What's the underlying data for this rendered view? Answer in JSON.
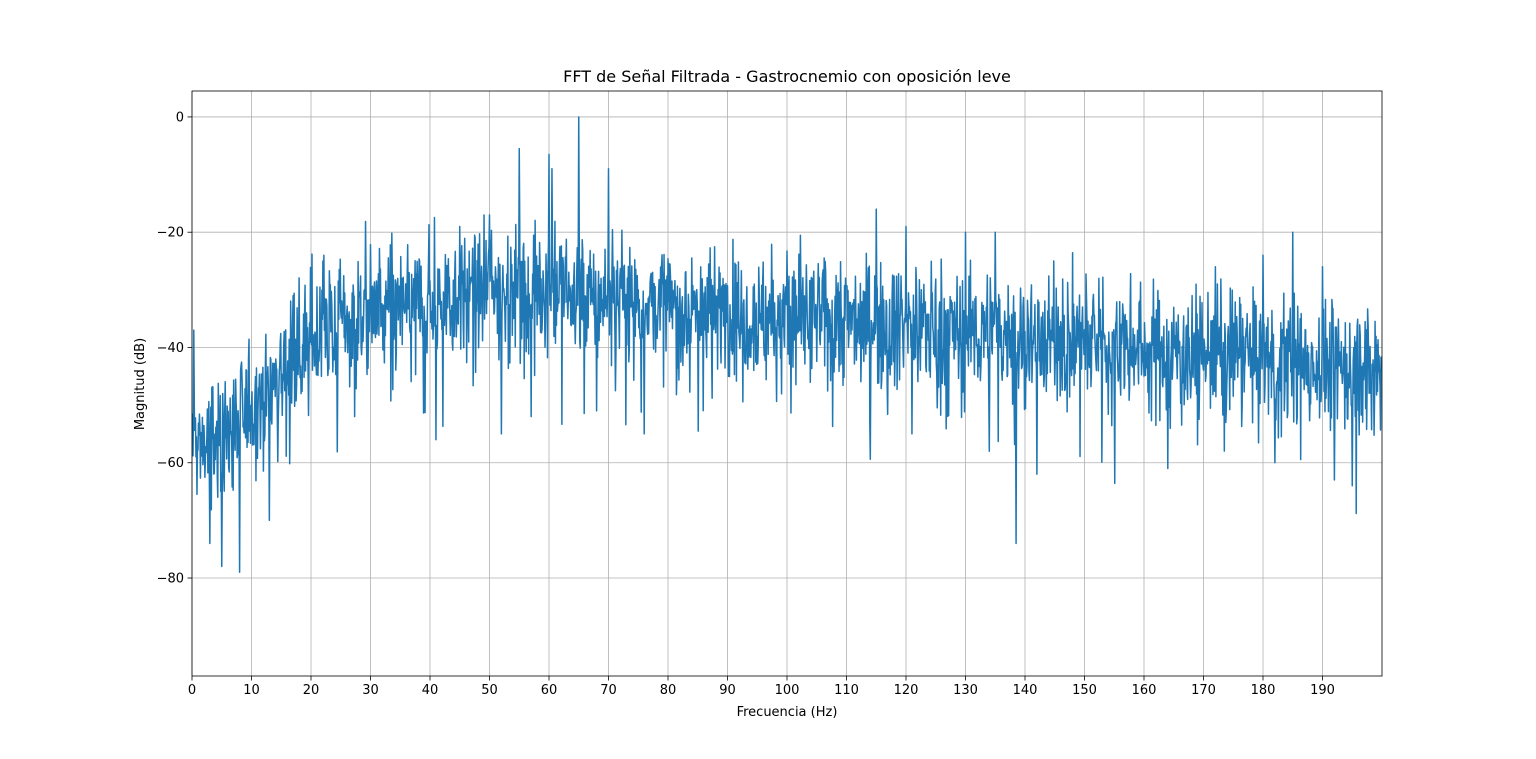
{
  "chart_data": {
    "type": "line",
    "title": "FFT de Señal Filtrada - Gastrocnemio con oposición leve",
    "xlabel": "Frecuencia (Hz)",
    "ylabel": "Magnitud (dB)",
    "xlim": [
      0,
      200
    ],
    "ylim": [
      -97,
      4.5
    ],
    "grid": true,
    "xticks": [
      0,
      10,
      20,
      30,
      40,
      50,
      60,
      70,
      80,
      90,
      100,
      110,
      120,
      130,
      140,
      150,
      160,
      170,
      180,
      190
    ],
    "xtick_labels": [
      "0",
      "10",
      "20",
      "30",
      "40",
      "50",
      "60",
      "70",
      "80",
      "90",
      "100",
      "110",
      "120",
      "130",
      "140",
      "150",
      "160",
      "170",
      "180",
      "190"
    ],
    "yticks": [
      0,
      -20,
      -40,
      -60,
      -80
    ],
    "ytick_labels": [
      "0",
      "−20",
      "−40",
      "−60",
      "−80"
    ],
    "line_color": "#1f77b4",
    "series": [
      {
        "envelope": {
          "x": [
            0,
            5,
            10,
            15,
            20,
            25,
            30,
            35,
            40,
            45,
            50,
            55,
            60,
            65,
            70,
            75,
            80,
            90,
            100,
            110,
            120,
            130,
            140,
            150,
            160,
            170,
            180,
            190,
            200
          ],
          "y": [
            -57,
            -56,
            -50,
            -44,
            -39,
            -36,
            -34,
            -33,
            -32,
            -31,
            -30,
            -30,
            -30,
            -31,
            -32,
            -32,
            -33,
            -34,
            -35,
            -35,
            -36,
            -37,
            -38,
            -39,
            -40,
            -41,
            -42,
            -43,
            -44
          ]
        },
        "noise_spread_db": 6,
        "peaks": [
          {
            "x": 0.3,
            "y": -37
          },
          {
            "x": 3,
            "y": -74
          },
          {
            "x": 5,
            "y": -78
          },
          {
            "x": 8,
            "y": -79
          },
          {
            "x": 13,
            "y": -70
          },
          {
            "x": 17,
            "y": -31
          },
          {
            "x": 22,
            "y": -25
          },
          {
            "x": 41,
            "y": -56
          },
          {
            "x": 45,
            "y": -19
          },
          {
            "x": 50,
            "y": -17
          },
          {
            "x": 52,
            "y": -55
          },
          {
            "x": 55,
            "y": -5.5
          },
          {
            "x": 57,
            "y": -52
          },
          {
            "x": 60,
            "y": -6.5
          },
          {
            "x": 60.5,
            "y": -9
          },
          {
            "x": 65,
            "y": 0
          },
          {
            "x": 68,
            "y": -51
          },
          {
            "x": 70,
            "y": -9
          },
          {
            "x": 76,
            "y": -55
          },
          {
            "x": 115,
            "y": -16
          },
          {
            "x": 120,
            "y": -19
          },
          {
            "x": 121,
            "y": -55
          },
          {
            "x": 130,
            "y": -20
          },
          {
            "x": 134,
            "y": -58
          },
          {
            "x": 135,
            "y": -20
          },
          {
            "x": 138.5,
            "y": -74
          },
          {
            "x": 142,
            "y": -62
          },
          {
            "x": 164,
            "y": -61
          },
          {
            "x": 180,
            "y": -24
          },
          {
            "x": 182,
            "y": -60
          },
          {
            "x": 185,
            "y": -20
          },
          {
            "x": 190,
            "y": -26
          },
          {
            "x": 192,
            "y": -63
          },
          {
            "x": 195,
            "y": -64
          }
        ]
      }
    ]
  }
}
